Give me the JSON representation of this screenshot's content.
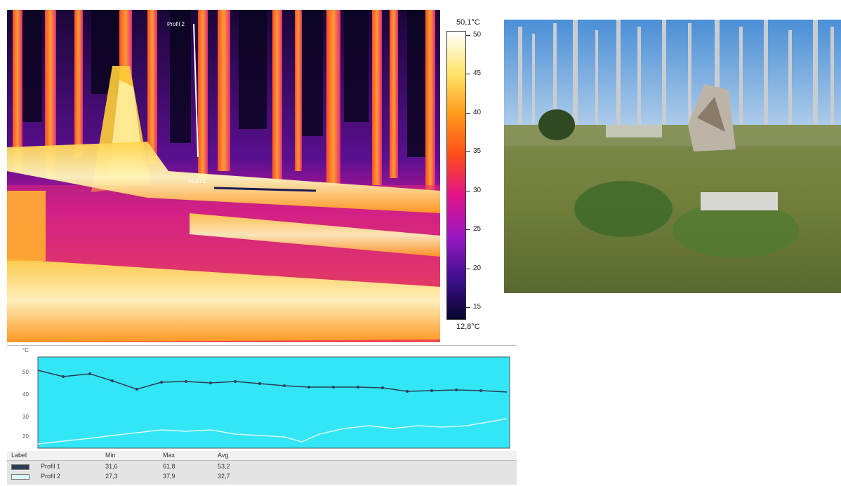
{
  "thermal_view": {
    "profile_labels": [
      "Profil 2",
      "Profil 1"
    ]
  },
  "color_scale": {
    "max_label": "50,1°C",
    "min_label": "12,8°C",
    "ticks": [
      "50",
      "45",
      "40",
      "35",
      "30",
      "25",
      "20",
      "15"
    ],
    "colors": [
      "#ffffff",
      "#ffe66a",
      "#ff9a1a",
      "#ff4d1a",
      "#e0138a",
      "#9a18c4",
      "#3e0f8f",
      "#08062e"
    ]
  },
  "profile_graph": {
    "unit_label": "°C",
    "y_tick_labels": [
      "50",
      "40",
      "30",
      "20"
    ],
    "background_color": "#33e6f5"
  },
  "legend_table": {
    "headers": [
      "Label",
      "Min",
      "Max",
      "Avg"
    ],
    "rows": [
      {
        "label": "Profil 1",
        "min": "31,6",
        "max": "61,8",
        "avg": "53,2"
      },
      {
        "label": "Profil 2",
        "min": "27,3",
        "max": "37,9",
        "avg": "32,7"
      }
    ]
  }
}
